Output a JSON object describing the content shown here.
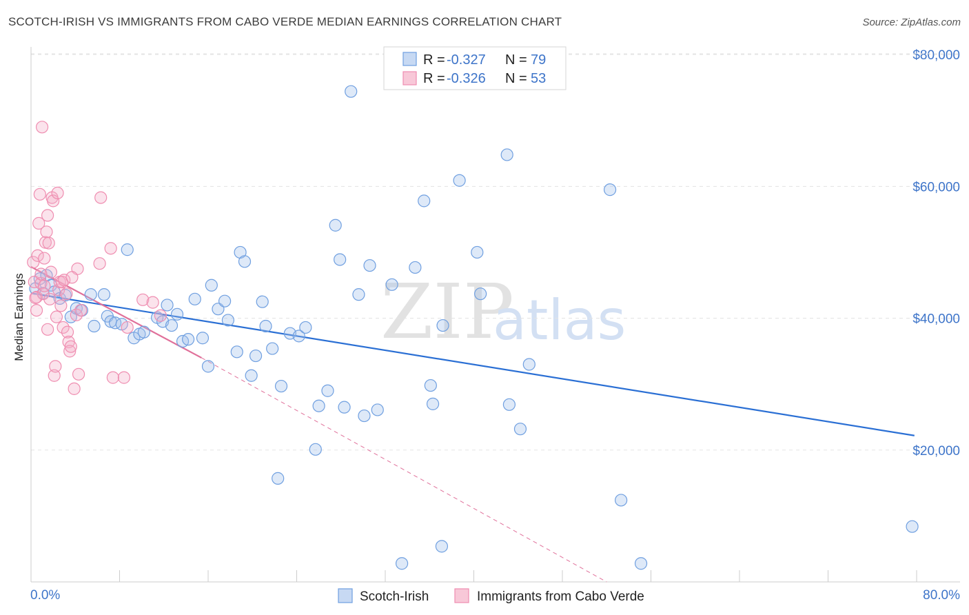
{
  "title": "SCOTCH-IRISH VS IMMIGRANTS FROM CABO VERDE MEDIAN EARNINGS CORRELATION CHART",
  "source": "Source: ZipAtlas.com",
  "watermark": {
    "zip": "ZIP",
    "atlas": "atlas"
  },
  "legend": {
    "r_label": "R =",
    "n_label": "N =",
    "rows": [
      {
        "r": "-0.327",
        "n": "79"
      },
      {
        "r": "-0.326",
        "n": "53"
      }
    ]
  },
  "chart_data": {
    "type": "scatter",
    "title": "SCOTCH-IRISH VS IMMIGRANTS FROM CABO VERDE MEDIAN EARNINGS CORRELATION CHART",
    "xlabel": "",
    "ylabel": "Median Earnings",
    "xlim": [
      0,
      80
    ],
    "ylim": [
      0,
      82000
    ],
    "x_tick_labels": [
      "0.0%",
      "80.0%"
    ],
    "y_ticks": [
      20000,
      40000,
      60000,
      80000
    ],
    "y_tick_labels": [
      "$20,000",
      "$40,000",
      "$60,000",
      "$80,000"
    ],
    "colors": {
      "series1": "#6f9fe0",
      "series2": "#ef8db0",
      "trend1": "#2a6fd4",
      "trend2": "#e0709a"
    },
    "series": [
      {
        "name": "Scotch-Irish",
        "points": [
          [
            0.4,
            44500
          ],
          [
            0.8,
            46000
          ],
          [
            1.1,
            43800
          ],
          [
            1.4,
            46500
          ],
          [
            1.8,
            45000
          ],
          [
            2.1,
            44000
          ],
          [
            2.6,
            43000
          ],
          [
            3.1,
            43500
          ],
          [
            3.6,
            40200
          ],
          [
            4.1,
            41500
          ],
          [
            4.6,
            41200
          ],
          [
            5.4,
            43600
          ],
          [
            5.7,
            38800
          ],
          [
            6.6,
            43600
          ],
          [
            6.9,
            40300
          ],
          [
            7.2,
            39500
          ],
          [
            7.6,
            39300
          ],
          [
            8.2,
            39100
          ],
          [
            8.7,
            50400
          ],
          [
            9.3,
            37000
          ],
          [
            9.8,
            37600
          ],
          [
            10.2,
            37900
          ],
          [
            11.4,
            40100
          ],
          [
            11.9,
            39500
          ],
          [
            12.3,
            42000
          ],
          [
            12.7,
            38900
          ],
          [
            13.2,
            40600
          ],
          [
            13.7,
            36500
          ],
          [
            14.2,
            36800
          ],
          [
            14.8,
            42900
          ],
          [
            15.5,
            37000
          ],
          [
            16.0,
            32700
          ],
          [
            16.3,
            45000
          ],
          [
            16.9,
            41400
          ],
          [
            17.5,
            42600
          ],
          [
            17.8,
            39700
          ],
          [
            18.6,
            34900
          ],
          [
            18.9,
            50000
          ],
          [
            19.3,
            48600
          ],
          [
            19.9,
            31300
          ],
          [
            20.3,
            34300
          ],
          [
            20.9,
            42500
          ],
          [
            21.2,
            38800
          ],
          [
            21.8,
            35400
          ],
          [
            22.3,
            15700
          ],
          [
            22.6,
            29700
          ],
          [
            23.4,
            37700
          ],
          [
            24.2,
            37300
          ],
          [
            24.8,
            38600
          ],
          [
            25.7,
            20100
          ],
          [
            26.0,
            26700
          ],
          [
            26.8,
            29000
          ],
          [
            27.5,
            54100
          ],
          [
            27.9,
            48900
          ],
          [
            28.3,
            26500
          ],
          [
            28.9,
            74400
          ],
          [
            29.6,
            43600
          ],
          [
            30.6,
            48000
          ],
          [
            30.1,
            25200
          ],
          [
            31.3,
            26100
          ],
          [
            32.6,
            45100
          ],
          [
            33.5,
            2800
          ],
          [
            34.7,
            47700
          ],
          [
            35.5,
            57800
          ],
          [
            36.1,
            29800
          ],
          [
            36.3,
            27000
          ],
          [
            37.1,
            5400
          ],
          [
            37.2,
            38900
          ],
          [
            38.7,
            60900
          ],
          [
            40.3,
            50000
          ],
          [
            40.6,
            43700
          ],
          [
            43.0,
            64800
          ],
          [
            43.2,
            26900
          ],
          [
            44.2,
            23200
          ],
          [
            45.0,
            33000
          ],
          [
            52.3,
            59500
          ],
          [
            53.3,
            12400
          ],
          [
            55.1,
            2800
          ],
          [
            79.6,
            8400
          ]
        ]
      },
      {
        "name": "Immigrants from Cabo Verde",
        "points": [
          [
            0.2,
            48500
          ],
          [
            0.3,
            45500
          ],
          [
            0.5,
            41200
          ],
          [
            0.5,
            43200
          ],
          [
            0.6,
            49500
          ],
          [
            0.7,
            54400
          ],
          [
            0.8,
            58800
          ],
          [
            0.9,
            45300
          ],
          [
            1.0,
            69000
          ],
          [
            1.1,
            43700
          ],
          [
            1.2,
            49100
          ],
          [
            1.3,
            51500
          ],
          [
            1.4,
            53100
          ],
          [
            1.5,
            55600
          ],
          [
            1.5,
            38300
          ],
          [
            1.6,
            51400
          ],
          [
            1.7,
            42900
          ],
          [
            1.8,
            47000
          ],
          [
            1.9,
            58300
          ],
          [
            2.0,
            57800
          ],
          [
            2.1,
            31300
          ],
          [
            2.2,
            32700
          ],
          [
            2.3,
            40200
          ],
          [
            2.4,
            59000
          ],
          [
            2.5,
            44300
          ],
          [
            2.6,
            45500
          ],
          [
            2.8,
            45500
          ],
          [
            2.9,
            38600
          ],
          [
            3.0,
            45800
          ],
          [
            3.2,
            43700
          ],
          [
            3.3,
            37900
          ],
          [
            3.4,
            36400
          ],
          [
            3.5,
            35000
          ],
          [
            3.6,
            35700
          ],
          [
            3.9,
            29300
          ],
          [
            4.1,
            40500
          ],
          [
            4.2,
            47500
          ],
          [
            4.3,
            31500
          ],
          [
            4.5,
            41200
          ],
          [
            6.2,
            48300
          ],
          [
            6.3,
            58300
          ],
          [
            7.2,
            50600
          ],
          [
            7.4,
            31000
          ],
          [
            8.4,
            31000
          ],
          [
            8.7,
            38600
          ],
          [
            10.1,
            42800
          ],
          [
            11.0,
            42400
          ],
          [
            11.7,
            40400
          ],
          [
            0.4,
            43100
          ],
          [
            0.9,
            46700
          ],
          [
            1.2,
            44900
          ],
          [
            2.7,
            41900
          ],
          [
            3.7,
            46200
          ]
        ]
      }
    ],
    "trend_lines": [
      {
        "series": "Scotch-Irish",
        "x": [
          0,
          79.8
        ],
        "y": [
          43800,
          22200
        ]
      },
      {
        "series": "Immigrants from Cabo Verde",
        "x": [
          0,
          15.4
        ],
        "y": [
          47800,
          34000
        ],
        "dashed_extension_to": [
          52,
          0
        ]
      }
    ]
  },
  "bottom_legend": [
    "Scotch-Irish",
    "Immigrants from Cabo Verde"
  ]
}
